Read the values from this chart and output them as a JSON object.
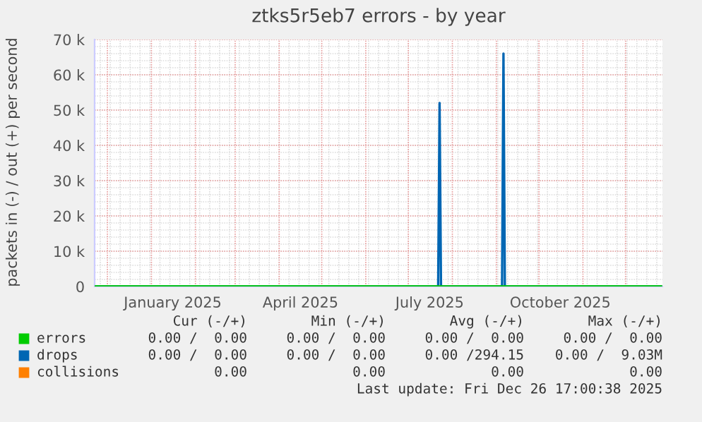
{
  "chart_data": {
    "type": "line",
    "title": "ztks5r5eb7 errors - by year",
    "ylabel": "packets in (-) / out (+) per second",
    "series": [
      {
        "name": "errors",
        "color": "#00cc00",
        "x": [
          "2024-11-22",
          "2025-12-26"
        ],
        "values": [
          0,
          0
        ]
      },
      {
        "name": "drops",
        "color": "#0066b3",
        "x": [
          "2024-11-22",
          "2025-07-22",
          "2025-07-23",
          "2025-07-24",
          "2025-09-05",
          "2025-09-06",
          "2025-09-07",
          "2025-12-26"
        ],
        "values": [
          0,
          0,
          52000,
          0,
          0,
          66000,
          0,
          0
        ]
      },
      {
        "name": "collisions",
        "color": "#ff8000"
      }
    ],
    "xlim": [
      "2024-11-22",
      "2025-12-27"
    ],
    "xticks": [
      {
        "value": "2025-01-16",
        "label": "January 2025"
      },
      {
        "value": "2025-04-16",
        "label": "April 2025"
      },
      {
        "value": "2025-07-16",
        "label": "July 2025"
      },
      {
        "value": "2025-10-16",
        "label": "October 2025"
      }
    ],
    "ylim": [
      0,
      70000
    ],
    "yticks": [
      {
        "value": 0,
        "label": "0"
      },
      {
        "value": 10000,
        "label": "10 k"
      },
      {
        "value": 20000,
        "label": "20 k"
      },
      {
        "value": 30000,
        "label": "30 k"
      },
      {
        "value": 40000,
        "label": "40 k"
      },
      {
        "value": 50000,
        "label": "50 k"
      },
      {
        "value": 60000,
        "label": "60 k"
      },
      {
        "value": 70000,
        "label": "70 k"
      }
    ],
    "grid": true,
    "legend": "bottom",
    "marker": "none",
    "line_style": "solid",
    "annotations": [
      "Cur (-/+)",
      "Min (-/+)",
      "Avg (-/+)",
      "Max (-/+)",
      "0.00 /  0.00",
      "0.00 /  0.00",
      "0.00 /  0.00",
      "0.00 /  0.00",
      "0.00 /  0.00",
      "0.00 /  0.00",
      "0.00 /294.15",
      "0.00 /  9.03M",
      "0.00",
      "0.00",
      "0.00",
      "0.00",
      "Last update: Fri Dec 26 17:00:38 2025"
    ]
  }
}
